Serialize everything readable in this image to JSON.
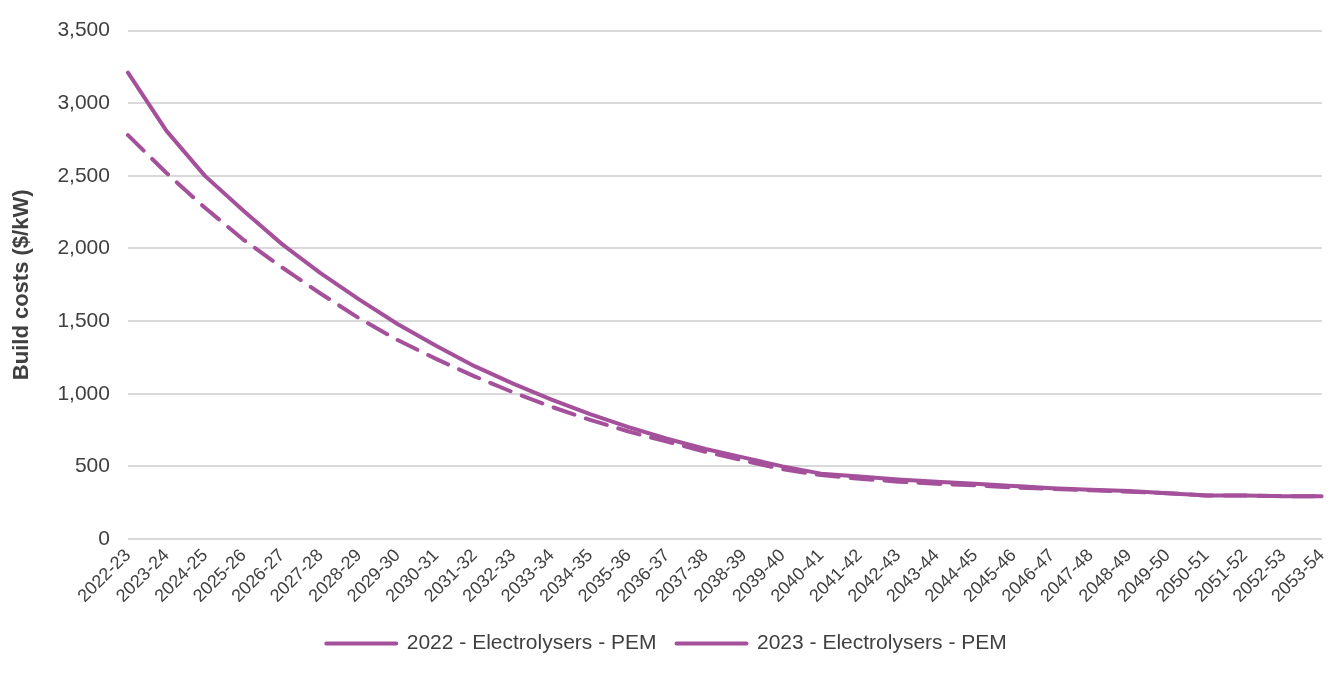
{
  "chart_data": {
    "type": "line",
    "ylabel": "Build costs ($/kW)",
    "categories": [
      "2022-23",
      "2023-24",
      "2024-25",
      "2025-26",
      "2026-27",
      "2027-28",
      "2028-29",
      "2029-30",
      "2030-31",
      "2031-32",
      "2032-33",
      "2033-34",
      "2034-35",
      "2035-36",
      "2036-37",
      "2037-38",
      "2038-39",
      "2039-40",
      "2040-41",
      "2041-42",
      "2042-43",
      "2043-44",
      "2044-45",
      "2045-46",
      "2046-47",
      "2047-48",
      "2048-49",
      "2049-50",
      "2050-51",
      "2051-52",
      "2052-53",
      "2053-54"
    ],
    "series": [
      {
        "name": "2022 - Electrolysers - PEM",
        "color": "#a4509b",
        "line_style": "dashed",
        "values": [
          2780,
          2520,
          2280,
          2060,
          1870,
          1690,
          1520,
          1370,
          1240,
          1120,
          1010,
          910,
          820,
          740,
          670,
          600,
          540,
          480,
          440,
          415,
          395,
          380,
          370,
          355,
          345,
          335,
          325,
          315,
          300,
          300,
          295,
          295
        ]
      },
      {
        "name": "2023 - Electrolysers - PEM",
        "color": "#a4509b",
        "line_style": "solid",
        "values": [
          3210,
          2810,
          2500,
          2260,
          2030,
          1830,
          1650,
          1480,
          1330,
          1190,
          1070,
          960,
          860,
          770,
          690,
          620,
          560,
          500,
          450,
          430,
          410,
          395,
          380,
          365,
          350,
          340,
          330,
          315,
          300,
          300,
          295,
          295
        ]
      }
    ],
    "ylim": [
      0,
      3500
    ],
    "yticks": [
      {
        "value": 0,
        "label": "0"
      },
      {
        "value": 500,
        "label": "500"
      },
      {
        "value": 1000,
        "label": "1,000"
      },
      {
        "value": 1500,
        "label": "1,500"
      },
      {
        "value": 2000,
        "label": "2,000"
      },
      {
        "value": 2500,
        "label": "2,500"
      },
      {
        "value": 3000,
        "label": "3,000"
      },
      {
        "value": 3500,
        "label": "3,500"
      }
    ],
    "grid": "y",
    "legend": "bottom",
    "marker": "none"
  }
}
